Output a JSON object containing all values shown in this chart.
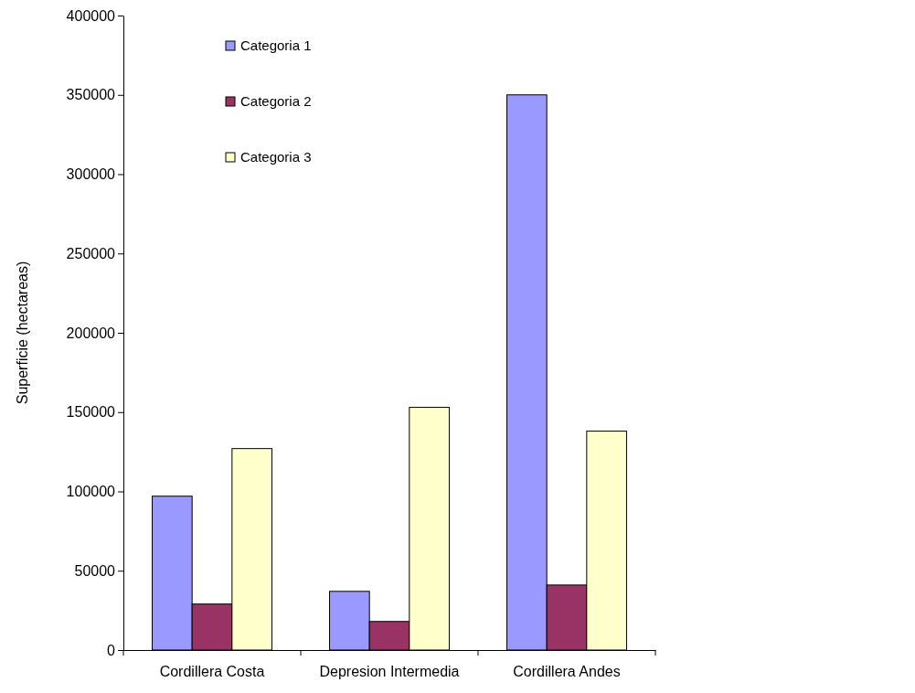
{
  "chart_data": {
    "type": "bar",
    "ylabel": "Superficie (hectareas)",
    "categories": [
      "Cordillera Costa",
      "Depresion Intermedia",
      "Cordillera Andes"
    ],
    "series": [
      {
        "name": "Categoria 1",
        "color": "#9999ff",
        "values": [
          97000,
          37000,
          350000
        ]
      },
      {
        "name": "Categoria 2",
        "color": "#993366",
        "values": [
          29000,
          18000,
          41000
        ]
      },
      {
        "name": "Categoria 3",
        "color": "#ffffcc",
        "values": [
          127000,
          153000,
          138000
        ]
      }
    ],
    "ylim": [
      0,
      400000
    ],
    "yticks": [
      0,
      50000,
      100000,
      150000,
      200000,
      250000,
      300000,
      350000,
      400000
    ],
    "grid": false,
    "legend": "top left"
  }
}
